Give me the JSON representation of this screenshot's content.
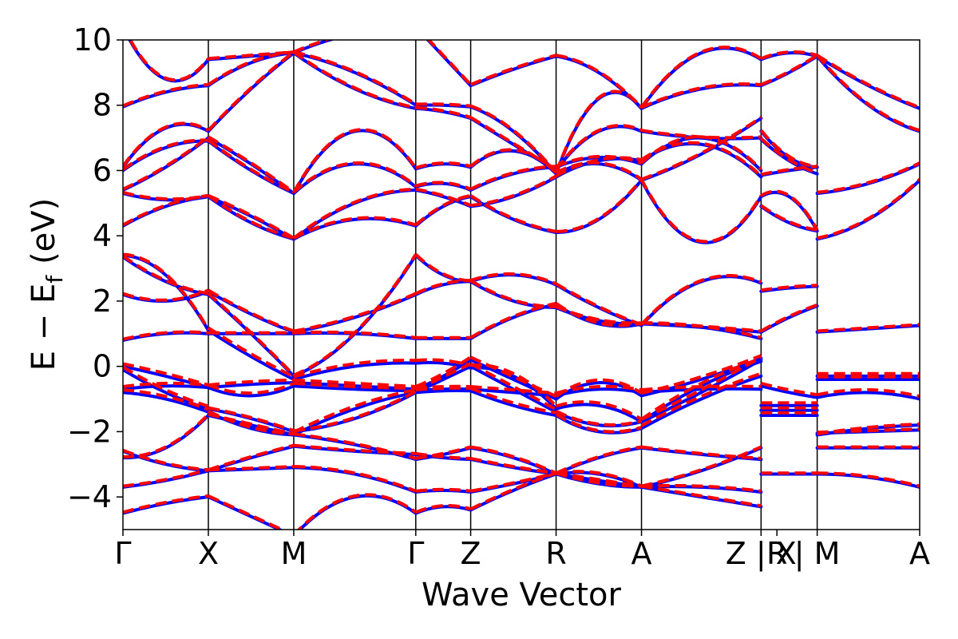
{
  "chart_data": {
    "type": "line",
    "xlabel": "Wave Vector",
    "ylabel": "E − E",
    "ylabel_sub": "f",
    "ylabel_unit": "(eV)",
    "ylim": [
      -5,
      10
    ],
    "yticks": [
      -4,
      -2,
      0,
      2,
      4,
      6,
      8,
      10
    ],
    "ytick_labels": [
      "−4",
      "−2",
      "0",
      "2",
      "4",
      "6",
      "8",
      "10"
    ],
    "xlim": [
      0,
      6.53
    ],
    "xticks": [
      {
        "x": 0.0,
        "label": "Γ"
      },
      {
        "x": 0.7,
        "label": "X"
      },
      {
        "x": 1.4,
        "label": "M"
      },
      {
        "x": 2.4,
        "label": "Γ"
      },
      {
        "x": 2.85,
        "label": "Z"
      },
      {
        "x": 3.55,
        "label": "R"
      },
      {
        "x": 4.25,
        "label": "A"
      },
      {
        "x": 5.23,
        "label": "Z | X"
      },
      {
        "x": 5.36,
        "label": "R"
      },
      {
        "x": 5.69,
        "label": "| M"
      },
      {
        "x": 6.53,
        "label": "A"
      }
    ],
    "vlines": [
      0.7,
      1.4,
      2.4,
      2.85,
      3.55,
      4.25,
      5.23,
      5.69
    ],
    "colors": {
      "dft": "#0000ff",
      "model": "#ff0000"
    },
    "segments": [
      {
        "x0": 0.0,
        "x1": 0.7,
        "bands": [
          [
            -4.5,
            -4.2,
            -4.0
          ],
          [
            -3.7,
            -3.5,
            -3.2
          ],
          [
            -2.8,
            -2.5,
            -1.5
          ],
          [
            -2.6,
            -3.0,
            -3.2
          ],
          [
            -0.8,
            -1.0,
            -1.4
          ],
          [
            -0.7,
            -0.6,
            -0.65
          ],
          [
            -0.1,
            -0.8,
            -1.3
          ],
          [
            0.0,
            -0.3,
            -0.65
          ],
          [
            0.8,
            1.0,
            1.0
          ],
          [
            2.2,
            2.0,
            2.3
          ],
          [
            3.4,
            2.8,
            1.1
          ],
          [
            3.35,
            2.6,
            2.2
          ],
          [
            4.3,
            4.9,
            5.2
          ],
          [
            5.3,
            5.1,
            5.2
          ],
          [
            5.4,
            6.1,
            7.0
          ],
          [
            6.0,
            6.7,
            6.9
          ],
          [
            6.1,
            7.3,
            7.2
          ],
          [
            7.95,
            8.4,
            8.6
          ],
          [
            10.4,
            8.8,
            9.4
          ]
        ]
      },
      {
        "x0": 0.7,
        "x1": 1.4,
        "bands": [
          [
            -4.0,
            -4.6,
            -5.2
          ],
          [
            -3.2,
            -3.15,
            -3.1
          ],
          [
            -1.5,
            -1.8,
            -2.1
          ],
          [
            -3.2,
            -2.8,
            -2.45
          ],
          [
            -1.4,
            -1.9,
            -2.1
          ],
          [
            -0.65,
            -0.9,
            -0.6
          ],
          [
            -1.3,
            -1.6,
            -2.0
          ],
          [
            -0.65,
            -0.55,
            -0.5
          ],
          [
            1.0,
            1.0,
            1.0
          ],
          [
            2.3,
            1.6,
            1.05
          ],
          [
            1.1,
            0.3,
            -0.4
          ],
          [
            2.2,
            1.0,
            -0.3
          ],
          [
            5.2,
            4.6,
            3.9
          ],
          [
            5.2,
            4.4,
            3.9
          ],
          [
            7.0,
            6.2,
            5.3
          ],
          [
            6.9,
            6.0,
            5.3
          ],
          [
            7.2,
            8.5,
            9.6
          ],
          [
            8.6,
            9.3,
            9.6
          ],
          [
            9.4,
            9.5,
            9.6
          ]
        ]
      },
      {
        "x0": 1.4,
        "x1": 2.4,
        "bands": [
          [
            -5.2,
            -4.0,
            -4.5
          ],
          [
            -3.1,
            -3.3,
            -3.85
          ],
          [
            -2.1,
            -2.4,
            -2.85
          ],
          [
            -2.45,
            -2.6,
            -2.7
          ],
          [
            -2.1,
            -1.3,
            -0.8
          ],
          [
            -0.6,
            -0.7,
            -0.75
          ],
          [
            -2.0,
            -1.6,
            -0.8
          ],
          [
            -0.5,
            -0.6,
            -0.7
          ],
          [
            1.0,
            1.0,
            0.85
          ],
          [
            1.05,
            1.5,
            2.2
          ],
          [
            -0.4,
            0.0,
            0.1
          ],
          [
            -0.3,
            1.0,
            3.4
          ],
          [
            3.9,
            4.5,
            4.3
          ],
          [
            3.9,
            5.0,
            5.4
          ],
          [
            5.3,
            6.2,
            5.5
          ],
          [
            5.3,
            7.2,
            6.05
          ],
          [
            9.6,
            8.5,
            7.9
          ],
          [
            9.6,
            9.0,
            8.0
          ],
          [
            9.6,
            10.2,
            10.4
          ]
        ]
      },
      {
        "x0": 2.4,
        "x1": 2.85,
        "bands": [
          [
            -4.5,
            -4.3,
            -4.4
          ],
          [
            -3.85,
            -3.8,
            -3.85
          ],
          [
            -2.85,
            -2.7,
            -2.5
          ],
          [
            -2.7,
            -2.8,
            -2.85
          ],
          [
            -0.8,
            -0.75,
            -0.75
          ],
          [
            -0.75,
            -0.7,
            -0.7
          ],
          [
            -0.8,
            -0.4,
            0.0
          ],
          [
            -0.7,
            -0.3,
            0.2
          ],
          [
            0.85,
            0.85,
            0.85
          ],
          [
            2.2,
            2.5,
            2.6
          ],
          [
            0.1,
            0.1,
            -0.05
          ],
          [
            3.4,
            2.8,
            2.6
          ],
          [
            4.3,
            4.9,
            5.2
          ],
          [
            5.4,
            5.2,
            4.9
          ],
          [
            5.5,
            5.6,
            5.4
          ],
          [
            6.05,
            6.2,
            6.1
          ],
          [
            7.9,
            7.8,
            7.6
          ],
          [
            8.0,
            8.0,
            7.95
          ],
          [
            10.4,
            9.5,
            8.6
          ]
        ]
      },
      {
        "x0": 2.85,
        "x1": 3.55,
        "bands": [
          [
            -4.4,
            -3.8,
            -3.3
          ],
          [
            -3.85,
            -3.6,
            -3.3
          ],
          [
            -2.5,
            -2.8,
            -3.3
          ],
          [
            -2.85,
            -3.1,
            -3.3
          ],
          [
            -0.75,
            -1.2,
            -1.5
          ],
          [
            -0.7,
            -0.8,
            -0.9
          ],
          [
            0.0,
            -0.7,
            -1.4
          ],
          [
            0.2,
            -0.4,
            -1.0
          ],
          [
            0.85,
            1.5,
            1.9
          ],
          [
            2.6,
            2.8,
            2.5
          ],
          [
            -0.05,
            -0.3,
            -1.3
          ],
          [
            2.6,
            2.0,
            1.8
          ],
          [
            5.2,
            4.5,
            4.1
          ],
          [
            4.9,
            5.2,
            5.8
          ],
          [
            5.4,
            5.9,
            6.1
          ],
          [
            6.1,
            6.6,
            5.9
          ],
          [
            7.6,
            6.8,
            6.0
          ],
          [
            7.95,
            7.2,
            5.9
          ],
          [
            8.6,
            9.1,
            9.5
          ]
        ]
      },
      {
        "x0": 3.55,
        "x1": 4.25,
        "bands": [
          [
            -3.3,
            -3.5,
            -3.7
          ],
          [
            -3.3,
            -3.6,
            -3.7
          ],
          [
            -3.3,
            -2.8,
            -2.5
          ],
          [
            -3.3,
            -3.3,
            -3.7
          ],
          [
            -1.5,
            -2.0,
            -1.9
          ],
          [
            -0.9,
            -0.7,
            -0.8
          ],
          [
            -1.4,
            -1.8,
            -1.7
          ],
          [
            -1.0,
            -0.5,
            -0.9
          ],
          [
            1.9,
            1.3,
            1.3
          ],
          [
            2.5,
            1.8,
            1.25
          ],
          [
            -1.3,
            -1.2,
            -1.7
          ],
          [
            1.8,
            1.4,
            1.3
          ],
          [
            4.1,
            4.5,
            5.7
          ],
          [
            5.8,
            6.3,
            6.3
          ],
          [
            6.1,
            6.4,
            6.2
          ],
          [
            5.9,
            6.2,
            5.7
          ],
          [
            6.0,
            7.2,
            7.2
          ],
          [
            5.9,
            8.2,
            7.9
          ],
          [
            9.5,
            9.0,
            7.9
          ]
        ]
      },
      {
        "x0": 4.25,
        "x1": 5.23,
        "bands": [
          [
            -3.7,
            -3.7,
            -3.85
          ],
          [
            -3.7,
            -3.2,
            -2.5
          ],
          [
            -2.5,
            -2.7,
            -2.85
          ],
          [
            -3.7,
            -4.0,
            -4.3
          ],
          [
            -1.9,
            -1.0,
            -0.3
          ],
          [
            -0.8,
            -0.7,
            -0.7
          ],
          [
            -1.7,
            -0.6,
            0.15
          ],
          [
            -0.9,
            -0.4,
            0.25
          ],
          [
            1.3,
            1.2,
            0.85
          ],
          [
            1.25,
            2.6,
            2.55
          ],
          [
            -1.7,
            -0.8,
            0.2
          ],
          [
            1.3,
            1.2,
            1.05
          ],
          [
            5.7,
            3.8,
            5.2
          ],
          [
            6.3,
            6.8,
            5.8
          ],
          [
            6.2,
            7.0,
            6.0
          ],
          [
            5.7,
            6.5,
            7.6
          ],
          [
            7.2,
            7.0,
            7.0
          ],
          [
            7.9,
            8.5,
            8.6
          ],
          [
            7.9,
            9.6,
            9.4
          ]
        ]
      },
      {
        "x0": 5.23,
        "x1": 5.69,
        "bands": [
          [
            -3.3,
            -3.3,
            -3.3
          ],
          [
            -1.2,
            -1.2,
            -1.2
          ],
          [
            -1.35,
            -1.35,
            -1.35
          ],
          [
            -1.5,
            -1.5,
            -1.5
          ],
          [
            -0.6,
            -0.8,
            -0.95
          ],
          [
            2.3,
            2.4,
            2.45
          ],
          [
            1.05,
            1.5,
            1.85
          ],
          [
            4.9,
            4.4,
            4.15
          ],
          [
            5.2,
            5.2,
            4.15
          ],
          [
            5.85,
            6.0,
            6.1
          ],
          [
            6.95,
            6.3,
            5.9
          ],
          [
            7.2,
            6.4,
            6.1
          ],
          [
            8.6,
            9.0,
            9.5
          ],
          [
            9.4,
            9.6,
            9.5
          ]
        ]
      },
      {
        "x0": 5.69,
        "x1": 6.53,
        "bands": [
          [
            -3.3,
            -3.4,
            -3.7
          ],
          [
            -2.5,
            -2.5,
            -2.5
          ],
          [
            -2.1,
            -1.9,
            -1.8
          ],
          [
            -2.05,
            -2.0,
            -1.95
          ],
          [
            -0.95,
            -0.8,
            -1.0
          ],
          [
            -0.3,
            -0.3,
            -0.3
          ],
          [
            -0.4,
            -0.4,
            -0.4
          ],
          [
            1.05,
            1.15,
            1.25
          ],
          [
            3.9,
            4.5,
            5.7
          ],
          [
            5.3,
            5.6,
            6.2
          ],
          [
            9.5,
            8.6,
            7.9
          ],
          [
            9.5,
            8.0,
            7.2
          ]
        ]
      }
    ]
  }
}
